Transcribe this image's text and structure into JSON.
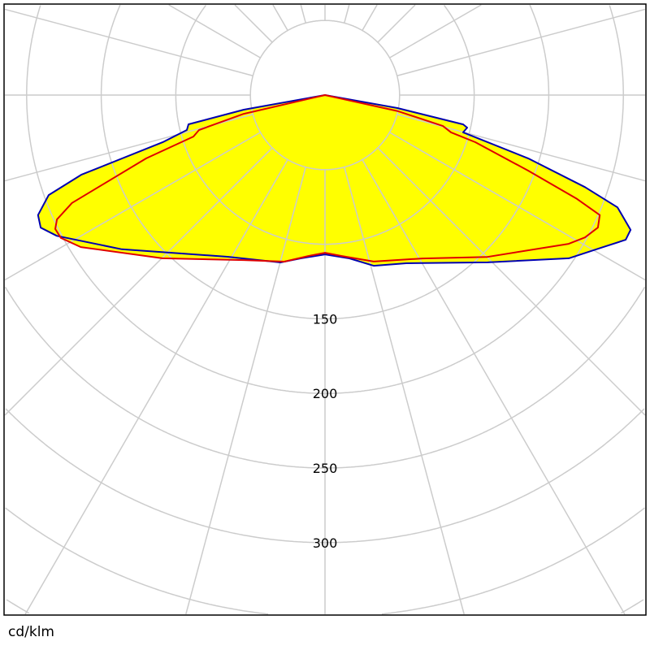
{
  "chart_data": {
    "type": "polar",
    "unit_label": "cd/klm",
    "radial_tick_labels": [
      "150",
      "200",
      "250",
      "300"
    ],
    "radial_grid_step": 50,
    "angular_grid_step_deg": 15,
    "grid": true,
    "angle_reference": "gamma, 0 = straight down",
    "colors": {
      "fill": "#ffff00",
      "series_blue": "#0000b0",
      "series_red": "#e00000",
      "grid": "#cccccc"
    },
    "series": [
      {
        "color": "#0000b0",
        "points": [
          [
            180,
            0
          ],
          [
            79.8,
            49.3
          ],
          [
            78.0,
            94.7
          ],
          [
            77.1,
            97.8
          ],
          [
            74.9,
            95.9
          ],
          [
            72.7,
            142.6
          ],
          [
            70.5,
            184.9
          ],
          [
            69.0,
            210.0
          ],
          [
            66.2,
            223.9
          ],
          [
            64.3,
            223.7
          ],
          [
            61.1,
            211.6
          ],
          [
            56.2,
            196.7
          ],
          [
            44.2,
            156.4
          ],
          [
            25.8,
            125.2
          ],
          [
            15.9,
            119.0
          ],
          [
            8.5,
            110.7
          ],
          [
            0,
            106.8
          ],
          [
            -8.5,
            110.7
          ],
          [
            -14.9,
            116.1
          ],
          [
            -31.1,
            126.6
          ],
          [
            -52.8,
            171.0
          ],
          [
            -62.3,
            203.0
          ],
          [
            -65.0,
            210.3
          ],
          [
            -67.3,
            208.5
          ],
          [
            -70.1,
            197.0
          ],
          [
            -71.9,
            171.9
          ],
          [
            -73.8,
            113.4
          ],
          [
            -75.8,
            95.5
          ],
          [
            -77.9,
            93.6
          ],
          [
            -79.8,
            55.3
          ],
          [
            -180,
            0
          ]
        ]
      },
      {
        "color": "#e00000",
        "points": [
          [
            180,
            0
          ],
          [
            77.5,
            50.2
          ],
          [
            75.3,
            81.7
          ],
          [
            73.5,
            88.1
          ],
          [
            72.6,
            105.6
          ],
          [
            69.6,
            145.3
          ],
          [
            67.6,
            182.7
          ],
          [
            66.4,
            201.0
          ],
          [
            64.1,
            203.4
          ],
          [
            61.3,
            198.7
          ],
          [
            58.6,
            191.4
          ],
          [
            45.1,
            153.7
          ],
          [
            30.8,
            127.5
          ],
          [
            16.3,
            116.3
          ],
          [
            5.8,
            108.4
          ],
          [
            0,
            105.7
          ],
          [
            -5.8,
            108.4
          ],
          [
            -13.7,
            114.9
          ],
          [
            -26.2,
            123.3
          ],
          [
            -44.9,
            154.5
          ],
          [
            -58.1,
            192.8
          ],
          [
            -61.6,
            201.3
          ],
          [
            -63.6,
            201.9
          ],
          [
            -65.1,
            198.1
          ],
          [
            -66.9,
            184.4
          ],
          [
            -70.5,
            127.1
          ],
          [
            -72.5,
            92.5
          ],
          [
            -74.5,
            87.6
          ],
          [
            -77.0,
            55.9
          ],
          [
            -180,
            0
          ]
        ]
      }
    ]
  }
}
